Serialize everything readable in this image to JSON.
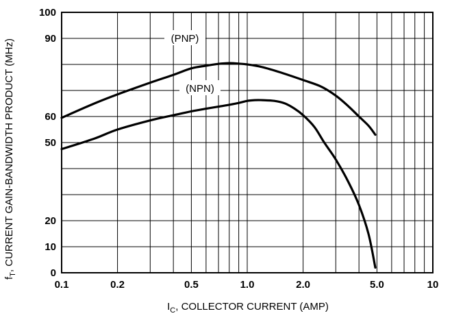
{
  "chart_data": {
    "type": "line",
    "xlabel": {
      "main": "I",
      "sub": "C",
      "rest": ", COLLECTOR CURRENT (AMP)"
    },
    "ylabel": {
      "main": "f",
      "sub": "T",
      "rest": ", CURRENT GAIN-BANDWIDTH PRODUCT (MHz)"
    },
    "x_scale": "log",
    "xlim": [
      0.1,
      10
    ],
    "ylim": [
      0,
      100
    ],
    "x_ticks": [
      {
        "value": 0.1,
        "label": "0.1"
      },
      {
        "value": 0.2,
        "label": "0.2"
      },
      {
        "value": 0.5,
        "label": "0.5"
      },
      {
        "value": 1.0,
        "label": "1.0"
      },
      {
        "value": 2.0,
        "label": "2.0"
      },
      {
        "value": 5.0,
        "label": "5.0"
      },
      {
        "value": 10,
        "label": "10"
      }
    ],
    "y_ticks": [
      {
        "value": 0,
        "label": "0"
      },
      {
        "value": 10,
        "label": "10"
      },
      {
        "value": 20,
        "label": "20"
      },
      {
        "value": 50,
        "label": "50"
      },
      {
        "value": 60,
        "label": "60"
      },
      {
        "value": 90,
        "label": "90"
      },
      {
        "value": 100,
        "label": "100"
      }
    ],
    "grid": true,
    "series": [
      {
        "name": "(PNP)",
        "x": [
          0.1,
          0.15,
          0.2,
          0.3,
          0.4,
          0.5,
          0.6,
          0.7,
          0.8,
          0.9,
          1.0,
          1.2,
          1.5,
          2.0,
          2.5,
          3.0,
          3.5,
          4.0,
          4.5,
          4.9
        ],
        "y": [
          59.5,
          65,
          68.5,
          73,
          76,
          78.5,
          79.5,
          80.2,
          80.5,
          80.3,
          80,
          79,
          77,
          74,
          71.5,
          68,
          64,
          60,
          56.5,
          53
        ]
      },
      {
        "name": "(NPN)",
        "x": [
          0.1,
          0.15,
          0.2,
          0.3,
          0.4,
          0.5,
          0.6,
          0.7,
          0.8,
          0.9,
          1.0,
          1.1,
          1.2,
          1.4,
          1.6,
          1.8,
          2.0,
          2.3,
          2.6,
          3.0,
          3.5,
          4.0,
          4.5,
          4.9
        ],
        "y": [
          47.5,
          51.5,
          55,
          58.5,
          60.5,
          62,
          63,
          63.8,
          64.5,
          65.2,
          66,
          66.3,
          66.3,
          66,
          65,
          63,
          60.5,
          56,
          50,
          43.5,
          35,
          26,
          15,
          2
        ]
      }
    ]
  }
}
